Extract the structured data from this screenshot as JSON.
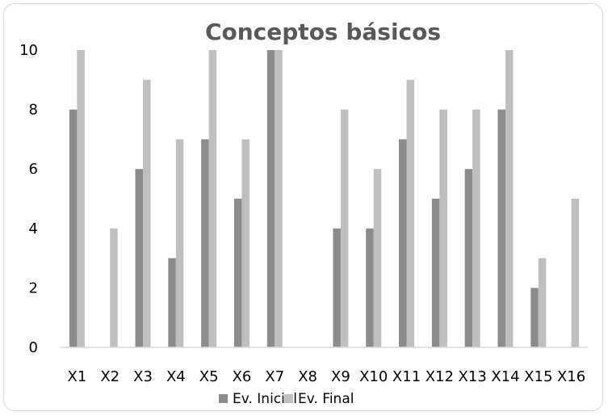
{
  "chart_data": {
    "type": "bar",
    "title": "Conceptos básicos",
    "categories": [
      "X1",
      "X2",
      "X3",
      "X4",
      "X5",
      "X6",
      "X7",
      "X8",
      "X9",
      "X10",
      "X11",
      "X12",
      "X13",
      "X14",
      "X15",
      "X16"
    ],
    "series": [
      {
        "name": "Ev. Inicial",
        "color": "#8c8c8c",
        "values": [
          8,
          0,
          6,
          3,
          7,
          5,
          10,
          0,
          4,
          4,
          7,
          5,
          6,
          8,
          2,
          0
        ]
      },
      {
        "name": "Ev. Final",
        "color": "#bfbfbf",
        "values": [
          10,
          4,
          9,
          7,
          10,
          7,
          10,
          0,
          8,
          6,
          9,
          8,
          8,
          10,
          3,
          5
        ]
      }
    ],
    "ylim": [
      0,
      10
    ],
    "yticks": [
      "0",
      "2",
      "4",
      "6",
      "8",
      "10"
    ],
    "grid": false,
    "legend": "bottom"
  }
}
